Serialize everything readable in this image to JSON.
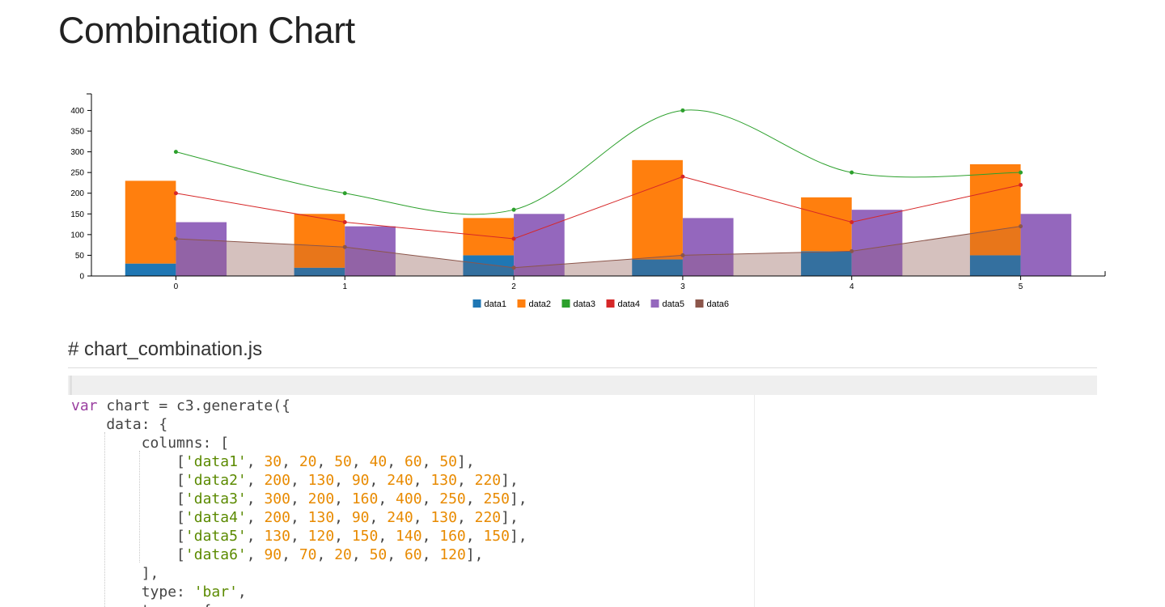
{
  "page": {
    "title": "Combination Chart",
    "section_heading": "# chart_combination.js"
  },
  "colors": {
    "data1": "#1f77b4",
    "data2": "#ff7f0e",
    "data3": "#2ca02c",
    "data4": "#d62728",
    "data5": "#9467bd",
    "data6": "#8c564b"
  },
  "chart_data": {
    "type": "bar",
    "title": "",
    "xlabel": "",
    "ylabel": "",
    "x": [
      0,
      1,
      2,
      3,
      4,
      5
    ],
    "yticks": [
      0,
      50,
      100,
      150,
      200,
      250,
      300,
      350,
      400
    ],
    "ylim": [
      0,
      440
    ],
    "grid": false,
    "legend_position": "bottom",
    "series": [
      {
        "name": "data1",
        "type": "bar",
        "group": "stack1",
        "values": [
          30,
          20,
          50,
          40,
          60,
          50
        ]
      },
      {
        "name": "data2",
        "type": "bar",
        "group": "stack1",
        "values": [
          200,
          130,
          90,
          240,
          130,
          220
        ]
      },
      {
        "name": "data3",
        "type": "spline",
        "values": [
          300,
          200,
          160,
          400,
          250,
          250
        ]
      },
      {
        "name": "data4",
        "type": "line",
        "values": [
          200,
          130,
          90,
          240,
          130,
          220
        ]
      },
      {
        "name": "data5",
        "type": "bar",
        "values": [
          130,
          120,
          150,
          140,
          160,
          150
        ]
      },
      {
        "name": "data6",
        "type": "area",
        "values": [
          90,
          70,
          20,
          50,
          60,
          120
        ]
      }
    ]
  },
  "code": {
    "lines": [
      [
        {
          "t": "kw",
          "v": "var"
        },
        {
          "t": "txt",
          "v": " chart = c3.generate({"
        }
      ],
      [
        {
          "t": "txt",
          "v": "    data: {"
        }
      ],
      [
        {
          "t": "txt",
          "v": "        columns: ["
        }
      ],
      [
        {
          "t": "txt",
          "v": "            ["
        },
        {
          "t": "str",
          "v": "'data1'"
        },
        {
          "t": "txt",
          "v": ", "
        },
        {
          "t": "num",
          "v": "30"
        },
        {
          "t": "txt",
          "v": ", "
        },
        {
          "t": "num",
          "v": "20"
        },
        {
          "t": "txt",
          "v": ", "
        },
        {
          "t": "num",
          "v": "50"
        },
        {
          "t": "txt",
          "v": ", "
        },
        {
          "t": "num",
          "v": "40"
        },
        {
          "t": "txt",
          "v": ", "
        },
        {
          "t": "num",
          "v": "60"
        },
        {
          "t": "txt",
          "v": ", "
        },
        {
          "t": "num",
          "v": "50"
        },
        {
          "t": "txt",
          "v": "],"
        }
      ],
      [
        {
          "t": "txt",
          "v": "            ["
        },
        {
          "t": "str",
          "v": "'data2'"
        },
        {
          "t": "txt",
          "v": ", "
        },
        {
          "t": "num",
          "v": "200"
        },
        {
          "t": "txt",
          "v": ", "
        },
        {
          "t": "num",
          "v": "130"
        },
        {
          "t": "txt",
          "v": ", "
        },
        {
          "t": "num",
          "v": "90"
        },
        {
          "t": "txt",
          "v": ", "
        },
        {
          "t": "num",
          "v": "240"
        },
        {
          "t": "txt",
          "v": ", "
        },
        {
          "t": "num",
          "v": "130"
        },
        {
          "t": "txt",
          "v": ", "
        },
        {
          "t": "num",
          "v": "220"
        },
        {
          "t": "txt",
          "v": "],"
        }
      ],
      [
        {
          "t": "txt",
          "v": "            ["
        },
        {
          "t": "str",
          "v": "'data3'"
        },
        {
          "t": "txt",
          "v": ", "
        },
        {
          "t": "num",
          "v": "300"
        },
        {
          "t": "txt",
          "v": ", "
        },
        {
          "t": "num",
          "v": "200"
        },
        {
          "t": "txt",
          "v": ", "
        },
        {
          "t": "num",
          "v": "160"
        },
        {
          "t": "txt",
          "v": ", "
        },
        {
          "t": "num",
          "v": "400"
        },
        {
          "t": "txt",
          "v": ", "
        },
        {
          "t": "num",
          "v": "250"
        },
        {
          "t": "txt",
          "v": ", "
        },
        {
          "t": "num",
          "v": "250"
        },
        {
          "t": "txt",
          "v": "],"
        }
      ],
      [
        {
          "t": "txt",
          "v": "            ["
        },
        {
          "t": "str",
          "v": "'data4'"
        },
        {
          "t": "txt",
          "v": ", "
        },
        {
          "t": "num",
          "v": "200"
        },
        {
          "t": "txt",
          "v": ", "
        },
        {
          "t": "num",
          "v": "130"
        },
        {
          "t": "txt",
          "v": ", "
        },
        {
          "t": "num",
          "v": "90"
        },
        {
          "t": "txt",
          "v": ", "
        },
        {
          "t": "num",
          "v": "240"
        },
        {
          "t": "txt",
          "v": ", "
        },
        {
          "t": "num",
          "v": "130"
        },
        {
          "t": "txt",
          "v": ", "
        },
        {
          "t": "num",
          "v": "220"
        },
        {
          "t": "txt",
          "v": "],"
        }
      ],
      [
        {
          "t": "txt",
          "v": "            ["
        },
        {
          "t": "str",
          "v": "'data5'"
        },
        {
          "t": "txt",
          "v": ", "
        },
        {
          "t": "num",
          "v": "130"
        },
        {
          "t": "txt",
          "v": ", "
        },
        {
          "t": "num",
          "v": "120"
        },
        {
          "t": "txt",
          "v": ", "
        },
        {
          "t": "num",
          "v": "150"
        },
        {
          "t": "txt",
          "v": ", "
        },
        {
          "t": "num",
          "v": "140"
        },
        {
          "t": "txt",
          "v": ", "
        },
        {
          "t": "num",
          "v": "160"
        },
        {
          "t": "txt",
          "v": ", "
        },
        {
          "t": "num",
          "v": "150"
        },
        {
          "t": "txt",
          "v": "],"
        }
      ],
      [
        {
          "t": "txt",
          "v": "            ["
        },
        {
          "t": "str",
          "v": "'data6'"
        },
        {
          "t": "txt",
          "v": ", "
        },
        {
          "t": "num",
          "v": "90"
        },
        {
          "t": "txt",
          "v": ", "
        },
        {
          "t": "num",
          "v": "70"
        },
        {
          "t": "txt",
          "v": ", "
        },
        {
          "t": "num",
          "v": "20"
        },
        {
          "t": "txt",
          "v": ", "
        },
        {
          "t": "num",
          "v": "50"
        },
        {
          "t": "txt",
          "v": ", "
        },
        {
          "t": "num",
          "v": "60"
        },
        {
          "t": "txt",
          "v": ", "
        },
        {
          "t": "num",
          "v": "120"
        },
        {
          "t": "txt",
          "v": "],"
        }
      ],
      [
        {
          "t": "txt",
          "v": "        ],"
        }
      ],
      [
        {
          "t": "txt",
          "v": "        type: "
        },
        {
          "t": "str",
          "v": "'bar'"
        },
        {
          "t": "txt",
          "v": ","
        }
      ],
      [
        {
          "t": "txt",
          "v": "        types: {"
        }
      ]
    ]
  }
}
